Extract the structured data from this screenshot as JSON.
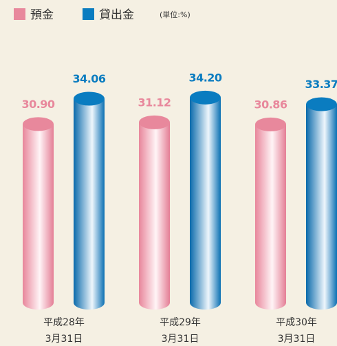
{
  "chart_data": {
    "type": "bar",
    "unit_note": "(単位:%)",
    "categories": [
      [
        "平成28年",
        "3月31日"
      ],
      [
        "平成29年",
        "3月31日"
      ],
      [
        "平成30年",
        "3月31日"
      ]
    ],
    "series": [
      {
        "name": "預金",
        "color": "#e8889c",
        "values": [
          30.9,
          31.12,
          30.86
        ],
        "value_labels": [
          "30.90",
          "31.12",
          "30.86"
        ]
      },
      {
        "name": "貸出金",
        "color": "#0a7cc0",
        "values": [
          34.06,
          34.2,
          33.37
        ],
        "value_labels": [
          "34.06",
          "34.20",
          "33.37"
        ]
      }
    ],
    "ylim": [
      8.7,
      40
    ]
  }
}
